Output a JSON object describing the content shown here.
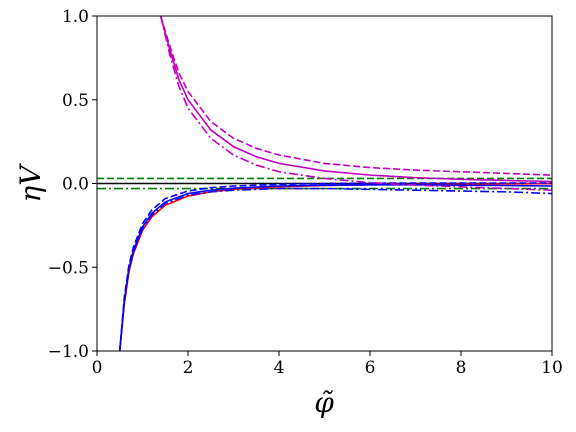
{
  "chart_data": {
    "type": "line",
    "xlabel": "φ̃",
    "ylabel": "ηV",
    "xlim": [
      0,
      10
    ],
    "ylim": [
      -1,
      1
    ],
    "xticks": [
      0,
      2,
      4,
      6,
      8,
      10
    ],
    "yticks": [
      {
        "value": -1,
        "label": "−1.0"
      },
      {
        "value": -0.5,
        "label": "−0.5"
      },
      {
        "value": 0,
        "label": "0.0"
      },
      {
        "value": 0.5,
        "label": "0.5"
      },
      {
        "value": 1,
        "label": "1.0"
      }
    ],
    "series": [
      {
        "color": "#000000",
        "style": "solid",
        "x": [
          0,
          10
        ],
        "values": [
          0,
          0
        ]
      },
      {
        "color": "#008000",
        "style": "dashed",
        "x": [
          0,
          10
        ],
        "values": [
          0.03,
          0.03
        ]
      },
      {
        "color": "#008000",
        "style": "dashdot",
        "x": [
          0,
          10
        ],
        "values": [
          -0.03,
          -0.03
        ]
      },
      {
        "color": "#ff0000",
        "style": "solid",
        "x": [
          0.5,
          0.6,
          0.7,
          0.8,
          1,
          1.2,
          1.5,
          2,
          2.5,
          3,
          4,
          5,
          6,
          7,
          8,
          9,
          10
        ],
        "values": [
          -1,
          -0.72,
          -0.53,
          -0.42,
          -0.28,
          -0.2,
          -0.13,
          -0.075,
          -0.05,
          -0.035,
          -0.02,
          -0.012,
          -0.008,
          -0.005,
          -0.003,
          -0.002,
          -0.001
        ]
      },
      {
        "color": "#0000ff",
        "style": "solid",
        "x": [
          0.5,
          0.6,
          0.7,
          0.8,
          1,
          1.2,
          1.5,
          2,
          2.5,
          3,
          4,
          5,
          6,
          7,
          8,
          9,
          10
        ],
        "values": [
          -1,
          -0.7,
          -0.51,
          -0.4,
          -0.26,
          -0.18,
          -0.11,
          -0.06,
          -0.04,
          -0.028,
          -0.015,
          -0.01,
          -0.008,
          -0.008,
          -0.01,
          -0.012,
          -0.015
        ]
      },
      {
        "color": "#0000ff",
        "style": "dashed",
        "x": [
          0.5,
          0.6,
          0.7,
          0.8,
          1,
          1.2,
          1.5,
          2,
          2.5,
          3,
          4,
          5,
          6,
          7,
          8,
          9,
          10
        ],
        "values": [
          -1,
          -0.68,
          -0.49,
          -0.38,
          -0.24,
          -0.16,
          -0.09,
          -0.045,
          -0.025,
          -0.015,
          -0.005,
          0,
          0.002,
          0.003,
          0.003,
          0.003,
          0.003
        ]
      },
      {
        "color": "#0000ff",
        "style": "dashdot",
        "x": [
          0.5,
          0.6,
          0.7,
          0.8,
          1,
          1.2,
          1.5,
          2,
          2.5,
          3,
          4,
          5,
          6,
          7,
          8,
          9,
          10
        ],
        "values": [
          -1,
          -0.71,
          -0.52,
          -0.41,
          -0.27,
          -0.19,
          -0.12,
          -0.07,
          -0.05,
          -0.04,
          -0.03,
          -0.03,
          -0.035,
          -0.04,
          -0.045,
          -0.05,
          -0.06
        ]
      },
      {
        "color": "#c000c0",
        "style": "solid",
        "x": [
          1.4,
          1.6,
          1.8,
          2,
          2.5,
          3,
          3.5,
          4,
          5,
          6,
          7,
          8,
          9,
          10
        ],
        "values": [
          1,
          0.8,
          0.62,
          0.5,
          0.32,
          0.22,
          0.16,
          0.12,
          0.075,
          0.05,
          0.035,
          0.025,
          0.018,
          0.012
        ]
      },
      {
        "color": "#c000c0",
        "style": "dashed",
        "x": [
          1.4,
          1.6,
          1.8,
          2,
          2.5,
          3,
          3.5,
          4,
          5,
          6,
          7,
          8,
          9,
          10
        ],
        "values": [
          1,
          0.82,
          0.66,
          0.55,
          0.37,
          0.27,
          0.21,
          0.17,
          0.12,
          0.095,
          0.08,
          0.07,
          0.06,
          0.05
        ]
      },
      {
        "color": "#c000c0",
        "style": "dashdot",
        "x": [
          1.4,
          1.6,
          1.8,
          2,
          2.5,
          3,
          3.5,
          4,
          5,
          6,
          7,
          8,
          9,
          10
        ],
        "values": [
          1,
          0.77,
          0.58,
          0.45,
          0.27,
          0.17,
          0.11,
          0.07,
          0.03,
          0.005,
          -0.01,
          -0.02,
          -0.03,
          -0.04
        ]
      }
    ]
  }
}
